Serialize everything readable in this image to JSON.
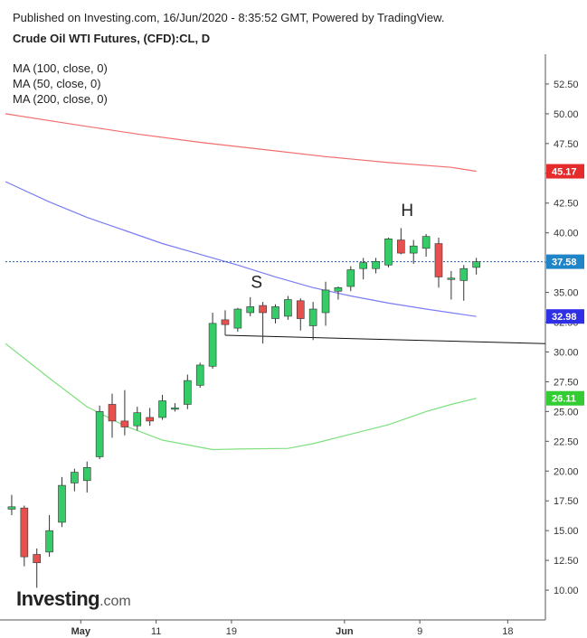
{
  "header": {
    "published": "Published on Investing.com, 16/Jun/2020 - 8:35:52 GMT, Powered by TradingView.",
    "title": "Crude Oil WTI Futures, (CFD):CL, D"
  },
  "legend": [
    {
      "label": "MA (100, close, 0)",
      "color": "#7b7bf5"
    },
    {
      "label": "MA (50, close, 0)",
      "color": "#7ee07e"
    },
    {
      "label": "MA (200, close, 0)",
      "color": "#f26d6d"
    }
  ],
  "logo": {
    "brand": "Investing",
    "domain": ".com"
  },
  "chart_data": {
    "type": "candlestick",
    "ylim": [
      7.5,
      55
    ],
    "y_ticks": [
      10,
      12.5,
      15,
      17.5,
      20,
      22.5,
      25,
      27.5,
      30,
      32.5,
      35,
      37.5,
      40,
      42.5,
      45,
      47.5,
      50,
      52.5
    ],
    "y_tick_labels": [
      "10.00",
      "12.50",
      "15.00",
      "17.50",
      "20.00",
      "22.50",
      "25.00",
      "27.50",
      "30.00",
      "32.50",
      "35.00",
      "37.50",
      "40.00",
      "42.50",
      "45.00",
      "47.50",
      "50.00",
      "52.50"
    ],
    "x_ticks": [
      {
        "label": "May",
        "index": 5.5
      },
      {
        "label": "11",
        "index": 11.5
      },
      {
        "label": "19",
        "index": 17.5
      },
      {
        "label": "Jun",
        "index": 26.5
      },
      {
        "label": "9",
        "index": 32.5
      },
      {
        "label": "18",
        "index": 39.5
      }
    ],
    "x_range": [
      -0.5,
      42.5
    ],
    "candles": [
      {
        "o": 16.8,
        "h": 18.0,
        "l": 16.3,
        "c": 17.0
      },
      {
        "o": 16.9,
        "h": 17.1,
        "l": 12.0,
        "c": 12.8
      },
      {
        "o": 13.0,
        "h": 13.5,
        "l": 10.2,
        "c": 12.3
      },
      {
        "o": 13.2,
        "h": 16.3,
        "l": 12.8,
        "c": 15.0
      },
      {
        "o": 15.7,
        "h": 19.5,
        "l": 15.3,
        "c": 18.8
      },
      {
        "o": 19.0,
        "h": 20.2,
        "l": 18.3,
        "c": 19.9
      },
      {
        "o": 19.2,
        "h": 20.8,
        "l": 18.2,
        "c": 20.3
      },
      {
        "o": 21.2,
        "h": 25.5,
        "l": 21.0,
        "c": 25.0
      },
      {
        "o": 25.6,
        "h": 26.5,
        "l": 22.8,
        "c": 24.2
      },
      {
        "o": 24.2,
        "h": 26.8,
        "l": 23.0,
        "c": 23.7
      },
      {
        "o": 23.8,
        "h": 25.4,
        "l": 23.4,
        "c": 24.9
      },
      {
        "o": 24.5,
        "h": 25.3,
        "l": 23.8,
        "c": 24.2
      },
      {
        "o": 24.5,
        "h": 26.4,
        "l": 24.3,
        "c": 25.9
      },
      {
        "o": 25.3,
        "h": 25.7,
        "l": 25.0,
        "c": 25.3
      },
      {
        "o": 25.6,
        "h": 28.1,
        "l": 25.2,
        "c": 27.6
      },
      {
        "o": 27.2,
        "h": 29.1,
        "l": 27.0,
        "c": 28.9
      },
      {
        "o": 28.8,
        "h": 33.3,
        "l": 28.6,
        "c": 32.4
      },
      {
        "o": 32.7,
        "h": 33.5,
        "l": 31.4,
        "c": 32.3
      },
      {
        "o": 32.0,
        "h": 33.7,
        "l": 31.7,
        "c": 33.6
      },
      {
        "o": 33.3,
        "h": 34.6,
        "l": 33.0,
        "c": 33.8
      },
      {
        "o": 33.9,
        "h": 34.2,
        "l": 30.7,
        "c": 33.3
      },
      {
        "o": 32.8,
        "h": 34.0,
        "l": 32.4,
        "c": 33.8
      },
      {
        "o": 33.0,
        "h": 34.7,
        "l": 32.7,
        "c": 34.4
      },
      {
        "o": 34.3,
        "h": 34.5,
        "l": 31.8,
        "c": 32.8
      },
      {
        "o": 32.2,
        "h": 34.2,
        "l": 31.0,
        "c": 33.6
      },
      {
        "o": 33.3,
        "h": 35.9,
        "l": 32.2,
        "c": 35.2
      },
      {
        "o": 35.1,
        "h": 35.5,
        "l": 34.4,
        "c": 35.4
      },
      {
        "o": 35.5,
        "h": 37.2,
        "l": 35.1,
        "c": 36.9
      },
      {
        "o": 37.0,
        "h": 37.9,
        "l": 36.1,
        "c": 37.5
      },
      {
        "o": 37.0,
        "h": 37.9,
        "l": 36.6,
        "c": 37.6
      },
      {
        "o": 37.3,
        "h": 39.6,
        "l": 37.1,
        "c": 39.5
      },
      {
        "o": 39.4,
        "h": 40.4,
        "l": 38.2,
        "c": 38.3
      },
      {
        "o": 38.3,
        "h": 39.4,
        "l": 37.4,
        "c": 38.9
      },
      {
        "o": 38.7,
        "h": 39.9,
        "l": 38.0,
        "c": 39.7
      },
      {
        "o": 39.1,
        "h": 39.6,
        "l": 35.4,
        "c": 36.3
      },
      {
        "o": 36.2,
        "h": 36.8,
        "l": 34.4,
        "c": 36.2
      },
      {
        "o": 36.0,
        "h": 37.3,
        "l": 34.3,
        "c": 37.0
      },
      {
        "o": 37.1,
        "h": 37.9,
        "l": 36.5,
        "c": 37.58
      }
    ],
    "series": [
      {
        "name": "MA (200, close, 0)",
        "color": "#f26d6d",
        "values": [
          [
            -0.5,
            50.0
          ],
          [
            5,
            49.1
          ],
          [
            10,
            48.3
          ],
          [
            15,
            47.6
          ],
          [
            20,
            47.0
          ],
          [
            25,
            46.4
          ],
          [
            30,
            45.9
          ],
          [
            35,
            45.5
          ],
          [
            37,
            45.17
          ]
        ]
      },
      {
        "name": "MA (100, close, 0)",
        "color": "#7b7bf5",
        "values": [
          [
            -0.5,
            44.3
          ],
          [
            3,
            42.6
          ],
          [
            6,
            41.3
          ],
          [
            9,
            40.2
          ],
          [
            12,
            39.1
          ],
          [
            15,
            38.2
          ],
          [
            18,
            37.3
          ],
          [
            21,
            36.3
          ],
          [
            24,
            35.4
          ],
          [
            27,
            34.7
          ],
          [
            30,
            34.1
          ],
          [
            33,
            33.6
          ],
          [
            37,
            32.98
          ]
        ]
      },
      {
        "name": "MA (50, close, 0)",
        "color": "#7ee07e",
        "values": [
          [
            -0.5,
            30.7
          ],
          [
            3,
            27.8
          ],
          [
            6,
            25.4
          ],
          [
            9,
            23.8
          ],
          [
            12,
            22.6
          ],
          [
            15,
            22.0
          ],
          [
            16,
            21.8
          ],
          [
            18,
            21.85
          ],
          [
            22,
            21.9
          ],
          [
            24,
            22.3
          ],
          [
            27,
            23.1
          ],
          [
            30,
            23.9
          ],
          [
            33,
            25.0
          ],
          [
            35,
            25.6
          ],
          [
            37,
            26.11
          ]
        ]
      }
    ],
    "badges": [
      {
        "label": "45.17",
        "value": 45.17,
        "color": "#e52b2b"
      },
      {
        "label": "37.58",
        "value": 37.58,
        "color": "#1f84c8"
      },
      {
        "label": "32.98",
        "value": 32.98,
        "color": "#2f2fe6"
      },
      {
        "label": "26.11",
        "value": 26.11,
        "color": "#33cc33"
      }
    ],
    "annotations": [
      {
        "text": "S",
        "x": 19.5,
        "y": 35.4
      },
      {
        "text": "H",
        "x": 31.5,
        "y": 41.4
      }
    ],
    "neckline": [
      [
        17,
        31.4
      ],
      [
        42.5,
        30.7
      ]
    ],
    "last_price_line": 37.58,
    "colors": {
      "up": "#33cc66",
      "down": "#e8504e",
      "wick": "#333333"
    }
  }
}
